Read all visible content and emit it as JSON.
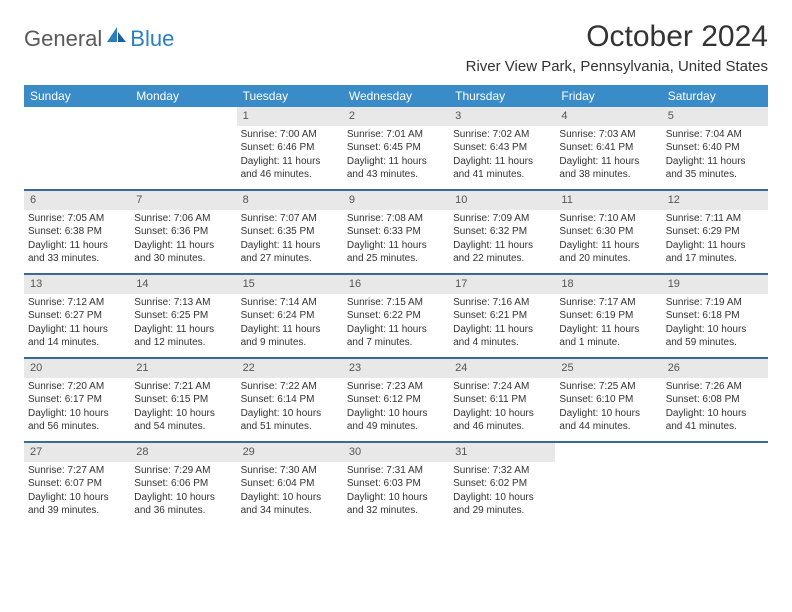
{
  "logo": {
    "text1": "General",
    "text2": "Blue"
  },
  "title": "October 2024",
  "location": "River View Park, Pennsylvania, United States",
  "weekdays": [
    "Sunday",
    "Monday",
    "Tuesday",
    "Wednesday",
    "Thursday",
    "Friday",
    "Saturday"
  ],
  "colors": {
    "header_bar": "#3a8cc8",
    "row_divider": "#3a6a9a",
    "day_number_bg": "#e8e8e8",
    "logo_gray": "#5a5a5a",
    "logo_blue": "#2a7fbf",
    "text": "#333333",
    "background": "#ffffff"
  },
  "fonts": {
    "title_size": 30,
    "location_size": 15,
    "weekday_size": 12,
    "daynum_size": 11,
    "body_size": 10
  },
  "layout": {
    "columns": 7,
    "rows": 5,
    "first_weekday_index": 2,
    "days_in_month": 31
  },
  "days": [
    {
      "n": 1,
      "sunrise": "7:00 AM",
      "sunset": "6:46 PM",
      "daylight": "11 hours and 46 minutes."
    },
    {
      "n": 2,
      "sunrise": "7:01 AM",
      "sunset": "6:45 PM",
      "daylight": "11 hours and 43 minutes."
    },
    {
      "n": 3,
      "sunrise": "7:02 AM",
      "sunset": "6:43 PM",
      "daylight": "11 hours and 41 minutes."
    },
    {
      "n": 4,
      "sunrise": "7:03 AM",
      "sunset": "6:41 PM",
      "daylight": "11 hours and 38 minutes."
    },
    {
      "n": 5,
      "sunrise": "7:04 AM",
      "sunset": "6:40 PM",
      "daylight": "11 hours and 35 minutes."
    },
    {
      "n": 6,
      "sunrise": "7:05 AM",
      "sunset": "6:38 PM",
      "daylight": "11 hours and 33 minutes."
    },
    {
      "n": 7,
      "sunrise": "7:06 AM",
      "sunset": "6:36 PM",
      "daylight": "11 hours and 30 minutes."
    },
    {
      "n": 8,
      "sunrise": "7:07 AM",
      "sunset": "6:35 PM",
      "daylight": "11 hours and 27 minutes."
    },
    {
      "n": 9,
      "sunrise": "7:08 AM",
      "sunset": "6:33 PM",
      "daylight": "11 hours and 25 minutes."
    },
    {
      "n": 10,
      "sunrise": "7:09 AM",
      "sunset": "6:32 PM",
      "daylight": "11 hours and 22 minutes."
    },
    {
      "n": 11,
      "sunrise": "7:10 AM",
      "sunset": "6:30 PM",
      "daylight": "11 hours and 20 minutes."
    },
    {
      "n": 12,
      "sunrise": "7:11 AM",
      "sunset": "6:29 PM",
      "daylight": "11 hours and 17 minutes."
    },
    {
      "n": 13,
      "sunrise": "7:12 AM",
      "sunset": "6:27 PM",
      "daylight": "11 hours and 14 minutes."
    },
    {
      "n": 14,
      "sunrise": "7:13 AM",
      "sunset": "6:25 PM",
      "daylight": "11 hours and 12 minutes."
    },
    {
      "n": 15,
      "sunrise": "7:14 AM",
      "sunset": "6:24 PM",
      "daylight": "11 hours and 9 minutes."
    },
    {
      "n": 16,
      "sunrise": "7:15 AM",
      "sunset": "6:22 PM",
      "daylight": "11 hours and 7 minutes."
    },
    {
      "n": 17,
      "sunrise": "7:16 AM",
      "sunset": "6:21 PM",
      "daylight": "11 hours and 4 minutes."
    },
    {
      "n": 18,
      "sunrise": "7:17 AM",
      "sunset": "6:19 PM",
      "daylight": "11 hours and 1 minute."
    },
    {
      "n": 19,
      "sunrise": "7:19 AM",
      "sunset": "6:18 PM",
      "daylight": "10 hours and 59 minutes."
    },
    {
      "n": 20,
      "sunrise": "7:20 AM",
      "sunset": "6:17 PM",
      "daylight": "10 hours and 56 minutes."
    },
    {
      "n": 21,
      "sunrise": "7:21 AM",
      "sunset": "6:15 PM",
      "daylight": "10 hours and 54 minutes."
    },
    {
      "n": 22,
      "sunrise": "7:22 AM",
      "sunset": "6:14 PM",
      "daylight": "10 hours and 51 minutes."
    },
    {
      "n": 23,
      "sunrise": "7:23 AM",
      "sunset": "6:12 PM",
      "daylight": "10 hours and 49 minutes."
    },
    {
      "n": 24,
      "sunrise": "7:24 AM",
      "sunset": "6:11 PM",
      "daylight": "10 hours and 46 minutes."
    },
    {
      "n": 25,
      "sunrise": "7:25 AM",
      "sunset": "6:10 PM",
      "daylight": "10 hours and 44 minutes."
    },
    {
      "n": 26,
      "sunrise": "7:26 AM",
      "sunset": "6:08 PM",
      "daylight": "10 hours and 41 minutes."
    },
    {
      "n": 27,
      "sunrise": "7:27 AM",
      "sunset": "6:07 PM",
      "daylight": "10 hours and 39 minutes."
    },
    {
      "n": 28,
      "sunrise": "7:29 AM",
      "sunset": "6:06 PM",
      "daylight": "10 hours and 36 minutes."
    },
    {
      "n": 29,
      "sunrise": "7:30 AM",
      "sunset": "6:04 PM",
      "daylight": "10 hours and 34 minutes."
    },
    {
      "n": 30,
      "sunrise": "7:31 AM",
      "sunset": "6:03 PM",
      "daylight": "10 hours and 32 minutes."
    },
    {
      "n": 31,
      "sunrise": "7:32 AM",
      "sunset": "6:02 PM",
      "daylight": "10 hours and 29 minutes."
    }
  ],
  "labels": {
    "sunrise": "Sunrise:",
    "sunset": "Sunset:",
    "daylight": "Daylight:"
  }
}
